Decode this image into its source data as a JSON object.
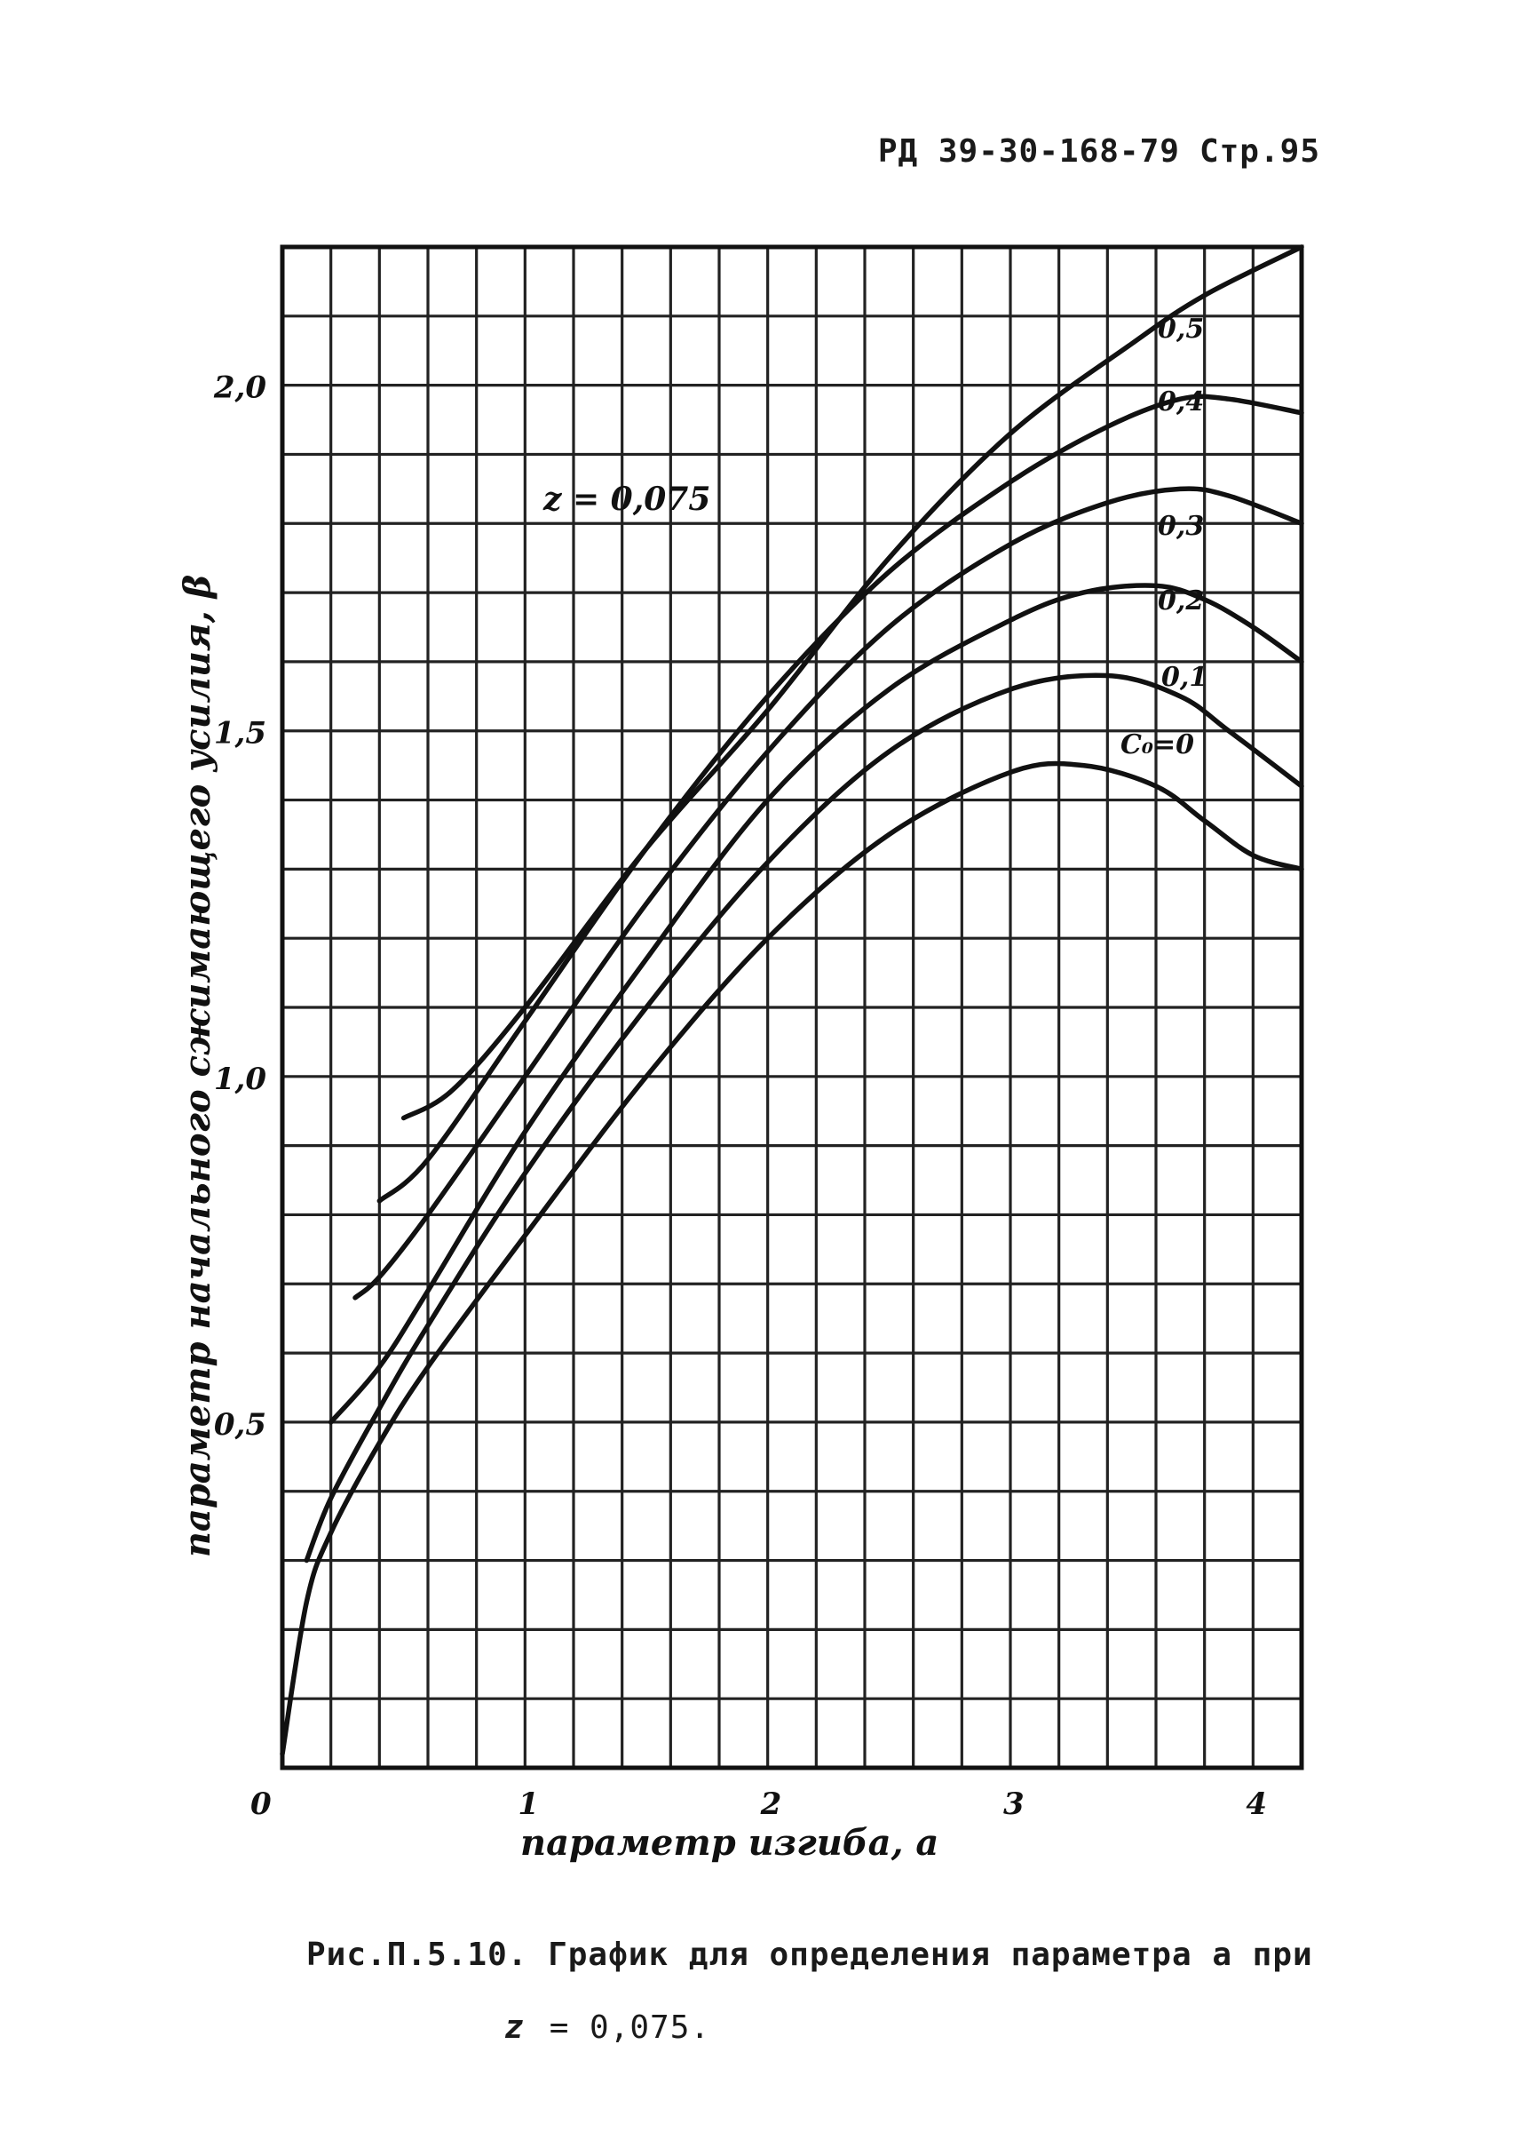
{
  "header": {
    "doc_code": "РД 39-30-168-79",
    "page": "Стр.95"
  },
  "chart_data": {
    "type": "line",
    "title": "",
    "annotation": "z = 0,075",
    "xlabel": "параметр изгиба, a",
    "ylabel": "параметр начального сжимающего усилия, β",
    "xlim": [
      0,
      4.2
    ],
    "ylim": [
      0,
      2.2
    ],
    "grid": true,
    "x_ticks": [
      {
        "value": 0,
        "label": "0"
      },
      {
        "value": 1,
        "label": "1"
      },
      {
        "value": 2,
        "label": "2"
      },
      {
        "value": 3,
        "label": "3"
      },
      {
        "value": 4,
        "label": "4"
      }
    ],
    "y_ticks": [
      {
        "value": 0.5,
        "label": "0,5"
      },
      {
        "value": 1.0,
        "label": "1,0"
      },
      {
        "value": 1.5,
        "label": "1,5"
      },
      {
        "value": 2.0,
        "label": "2,0"
      }
    ],
    "series": [
      {
        "name": "C₀ = 0",
        "label": "C₀=0",
        "x": [
          0,
          0.1,
          0.2,
          0.4,
          0.6,
          1.0,
          1.5,
          2.0,
          2.5,
          3.0,
          3.3,
          3.6,
          3.8,
          4.0,
          4.2
        ],
        "y": [
          0.02,
          0.24,
          0.34,
          0.47,
          0.58,
          0.77,
          1.0,
          1.2,
          1.35,
          1.44,
          1.45,
          1.42,
          1.37,
          1.32,
          1.3
        ]
      },
      {
        "name": "0,1",
        "label": "0,1",
        "x": [
          0.1,
          0.2,
          0.4,
          0.6,
          1.0,
          1.5,
          2.0,
          2.5,
          3.0,
          3.4,
          3.7,
          3.9,
          4.2
        ],
        "y": [
          0.3,
          0.39,
          0.52,
          0.64,
          0.86,
          1.1,
          1.31,
          1.47,
          1.56,
          1.58,
          1.55,
          1.5,
          1.42
        ]
      },
      {
        "name": "0,2",
        "label": "0,2",
        "x": [
          0.2,
          0.4,
          0.6,
          1.0,
          1.5,
          2.0,
          2.5,
          3.0,
          3.3,
          3.6,
          3.8,
          4.0,
          4.2
        ],
        "y": [
          0.5,
          0.58,
          0.69,
          0.92,
          1.17,
          1.4,
          1.56,
          1.66,
          1.7,
          1.71,
          1.69,
          1.65,
          1.6
        ]
      },
      {
        "name": "0,3",
        "label": "0,3",
        "x": [
          0.3,
          0.4,
          0.6,
          1.0,
          1.5,
          2.0,
          2.5,
          3.0,
          3.4,
          3.7,
          3.9,
          4.2
        ],
        "y": [
          0.68,
          0.71,
          0.8,
          1.0,
          1.25,
          1.47,
          1.65,
          1.77,
          1.83,
          1.85,
          1.84,
          1.8
        ]
      },
      {
        "name": "0,4",
        "label": "0,4",
        "x": [
          0.4,
          0.6,
          1.0,
          1.5,
          2.0,
          2.5,
          3.0,
          3.4,
          3.7,
          3.9,
          4.2
        ],
        "y": [
          0.82,
          0.88,
          1.08,
          1.33,
          1.55,
          1.73,
          1.86,
          1.94,
          1.98,
          1.98,
          1.96
        ]
      },
      {
        "name": "0,5",
        "label": "0,5",
        "x": [
          0.5,
          0.7,
          1.0,
          1.5,
          2.0,
          2.5,
          3.0,
          3.5,
          3.8,
          4.2
        ],
        "y": [
          0.94,
          0.98,
          1.1,
          1.33,
          1.53,
          1.75,
          1.93,
          2.06,
          2.13,
          2.2
        ]
      }
    ]
  },
  "caption": {
    "line1": "Рис.П.5.10. График для определения параметра a при",
    "line2_var": "z",
    "line2_value": "= 0,075."
  }
}
